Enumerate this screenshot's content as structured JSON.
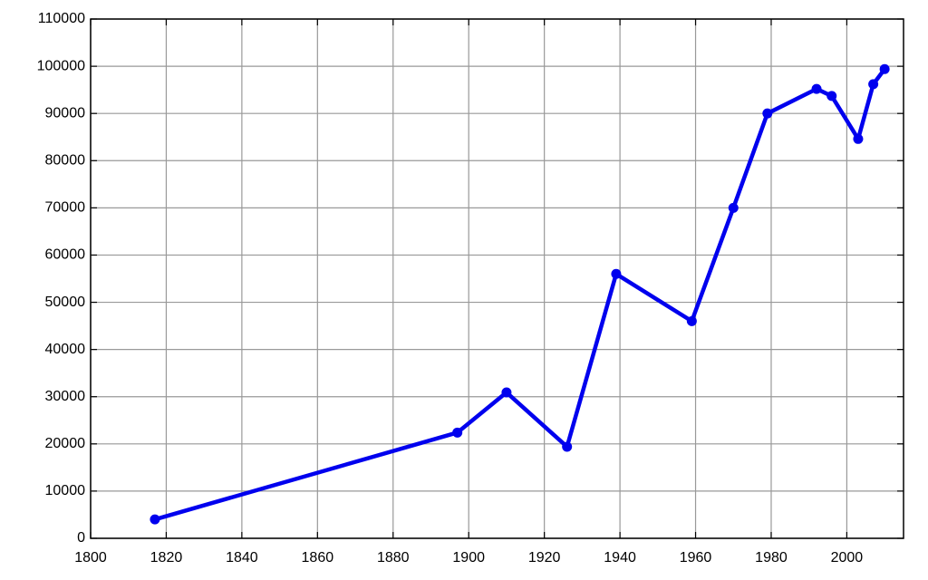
{
  "chart_data": {
    "type": "line",
    "x": [
      1817,
      1897,
      1910,
      1926,
      1939,
      1959,
      1970,
      1979,
      1992,
      1996,
      2003,
      2007,
      2010
    ],
    "series": [
      {
        "color": "#0000ee",
        "values": [
          4000,
          22400,
          30900,
          19400,
          56000,
          46000,
          70000,
          90000,
          95200,
          93700,
          84600,
          96200,
          99400
        ]
      }
    ],
    "xlim": [
      1800,
      2015
    ],
    "xticks": [
      1800,
      1820,
      1840,
      1860,
      1880,
      1900,
      1920,
      1940,
      1960,
      1980,
      2000
    ],
    "ylim": [
      0,
      110000
    ],
    "yticks": [
      0,
      10000,
      20000,
      30000,
      40000,
      50000,
      60000,
      70000,
      80000,
      90000,
      100000,
      110000
    ],
    "grid": true,
    "markers": true
  }
}
